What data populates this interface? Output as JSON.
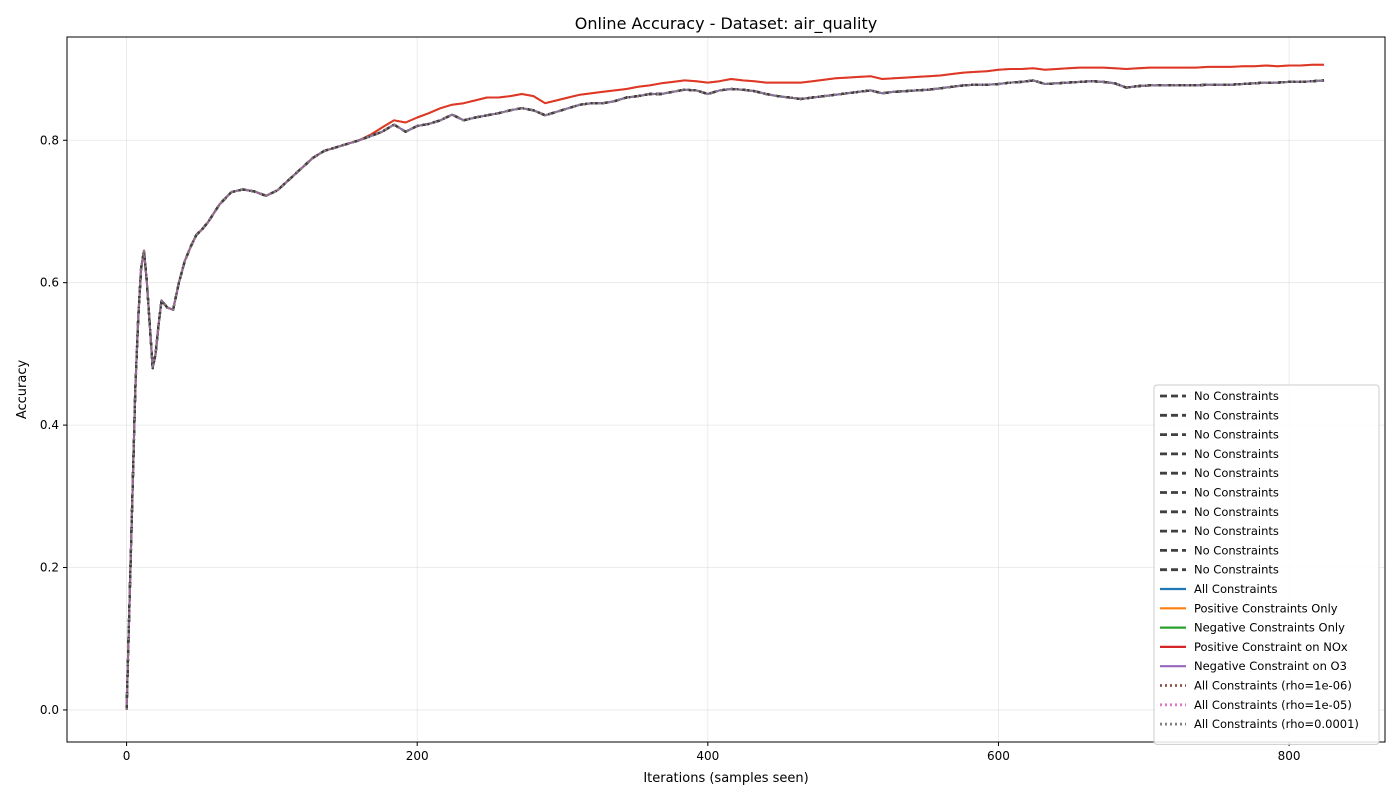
{
  "chart_data": {
    "type": "line",
    "title": "Online Accuracy - Dataset: air_quality",
    "xlabel": "Iterations (samples seen)",
    "ylabel": "Accuracy",
    "xlim": [
      -41,
      866
    ],
    "ylim": [
      -0.045,
      0.945
    ],
    "xticks": [
      0,
      200,
      400,
      600,
      800
    ],
    "xtick_labels": [
      "0",
      "200",
      "400",
      "600",
      "800"
    ],
    "yticks": [
      0.0,
      0.2,
      0.4,
      0.6,
      0.8
    ],
    "ytick_labels": [
      "0.0",
      "0.2",
      "0.4",
      "0.6",
      "0.8"
    ],
    "grid": true,
    "legend_position": "lower-right",
    "curves": {
      "baseline": {
        "x": [
          0,
          2,
          4,
          6,
          8,
          10,
          12,
          14,
          16,
          18,
          20,
          22,
          24,
          26,
          28,
          32,
          36,
          40,
          44,
          48,
          52,
          56,
          64,
          72,
          80,
          88,
          96,
          104,
          112,
          120,
          128,
          136,
          144,
          152,
          160,
          168,
          176,
          184,
          192,
          200,
          208,
          216,
          224,
          232,
          240,
          248,
          256,
          264,
          272,
          280,
          288,
          296,
          304,
          312,
          320,
          328,
          336,
          344,
          352,
          360,
          368,
          376,
          384,
          392,
          400,
          408,
          416,
          424,
          432,
          440,
          448,
          456,
          464,
          472,
          480,
          488,
          496,
          504,
          512,
          520,
          528,
          536,
          544,
          552,
          560,
          568,
          576,
          584,
          592,
          600,
          608,
          616,
          624,
          632,
          640,
          648,
          656,
          664,
          672,
          680,
          688,
          696,
          704,
          712,
          720,
          728,
          736,
          744,
          752,
          760,
          768,
          776,
          784,
          792,
          800,
          808,
          816,
          824
        ],
        "y": [
          0.0,
          0.15,
          0.3,
          0.45,
          0.55,
          0.62,
          0.645,
          0.6,
          0.54,
          0.48,
          0.5,
          0.54,
          0.575,
          0.57,
          0.565,
          0.562,
          0.6,
          0.63,
          0.65,
          0.667,
          0.675,
          0.685,
          0.71,
          0.727,
          0.731,
          0.728,
          0.722,
          0.73,
          0.745,
          0.76,
          0.775,
          0.785,
          0.79,
          0.795,
          0.8,
          0.806,
          0.812,
          0.822,
          0.812,
          0.82,
          0.823,
          0.828,
          0.836,
          0.828,
          0.832,
          0.835,
          0.838,
          0.842,
          0.845,
          0.842,
          0.835,
          0.84,
          0.845,
          0.85,
          0.852,
          0.852,
          0.855,
          0.86,
          0.862,
          0.865,
          0.865,
          0.868,
          0.871,
          0.87,
          0.865,
          0.87,
          0.872,
          0.871,
          0.869,
          0.865,
          0.862,
          0.86,
          0.858,
          0.86,
          0.862,
          0.864,
          0.866,
          0.868,
          0.87,
          0.866,
          0.868,
          0.869,
          0.87,
          0.871,
          0.873,
          0.875,
          0.877,
          0.878,
          0.878,
          0.879,
          0.881,
          0.882,
          0.884,
          0.879,
          0.88,
          0.881,
          0.882,
          0.883,
          0.882,
          0.88,
          0.874,
          0.876,
          0.877,
          0.877,
          0.877,
          0.877,
          0.877,
          0.878,
          0.878,
          0.878,
          0.879,
          0.88,
          0.881,
          0.881,
          0.882,
          0.882,
          0.883,
          0.884
        ]
      },
      "nox": {
        "x": [
          0,
          2,
          4,
          6,
          8,
          10,
          12,
          14,
          16,
          18,
          20,
          22,
          24,
          26,
          28,
          32,
          36,
          40,
          44,
          48,
          52,
          56,
          64,
          72,
          80,
          88,
          96,
          104,
          112,
          120,
          128,
          136,
          144,
          152,
          160,
          168,
          176,
          184,
          192,
          200,
          208,
          216,
          224,
          232,
          240,
          248,
          256,
          264,
          272,
          280,
          288,
          296,
          304,
          312,
          320,
          328,
          336,
          344,
          352,
          360,
          368,
          376,
          384,
          392,
          400,
          408,
          416,
          424,
          432,
          440,
          448,
          456,
          464,
          472,
          480,
          488,
          496,
          504,
          512,
          520,
          528,
          536,
          544,
          552,
          560,
          568,
          576,
          584,
          592,
          600,
          608,
          616,
          624,
          632,
          640,
          648,
          656,
          664,
          672,
          680,
          688,
          696,
          704,
          712,
          720,
          728,
          736,
          744,
          752,
          760,
          768,
          776,
          784,
          792,
          800,
          808,
          816,
          824
        ],
        "y": [
          0.0,
          0.15,
          0.3,
          0.45,
          0.55,
          0.62,
          0.645,
          0.6,
          0.54,
          0.48,
          0.5,
          0.54,
          0.575,
          0.57,
          0.565,
          0.562,
          0.6,
          0.63,
          0.65,
          0.667,
          0.675,
          0.685,
          0.71,
          0.727,
          0.731,
          0.728,
          0.722,
          0.73,
          0.745,
          0.76,
          0.775,
          0.785,
          0.79,
          0.795,
          0.8,
          0.808,
          0.818,
          0.828,
          0.825,
          0.832,
          0.838,
          0.845,
          0.85,
          0.852,
          0.856,
          0.86,
          0.86,
          0.862,
          0.865,
          0.862,
          0.852,
          0.856,
          0.86,
          0.864,
          0.866,
          0.868,
          0.87,
          0.872,
          0.875,
          0.877,
          0.88,
          0.882,
          0.884,
          0.883,
          0.881,
          0.883,
          0.886,
          0.884,
          0.883,
          0.881,
          0.881,
          0.881,
          0.881,
          0.883,
          0.885,
          0.887,
          0.888,
          0.889,
          0.89,
          0.886,
          0.887,
          0.888,
          0.889,
          0.89,
          0.891,
          0.893,
          0.895,
          0.896,
          0.897,
          0.899,
          0.9,
          0.9,
          0.901,
          0.899,
          0.9,
          0.901,
          0.902,
          0.902,
          0.902,
          0.901,
          0.9,
          0.901,
          0.902,
          0.902,
          0.902,
          0.902,
          0.902,
          0.903,
          0.903,
          0.903,
          0.904,
          0.904,
          0.905,
          0.904,
          0.905,
          0.905,
          0.906,
          0.906
        ]
      }
    },
    "series": [
      {
        "name": "No Constraints",
        "curve": "baseline",
        "color": "#404040",
        "style": "dashed"
      },
      {
        "name": "No Constraints",
        "curve": "baseline",
        "color": "#404040",
        "style": "dashed"
      },
      {
        "name": "No Constraints",
        "curve": "baseline",
        "color": "#404040",
        "style": "dashed"
      },
      {
        "name": "No Constraints",
        "curve": "baseline",
        "color": "#404040",
        "style": "dashed"
      },
      {
        "name": "No Constraints",
        "curve": "baseline",
        "color": "#404040",
        "style": "dashed"
      },
      {
        "name": "No Constraints",
        "curve": "baseline",
        "color": "#404040",
        "style": "dashed"
      },
      {
        "name": "No Constraints",
        "curve": "baseline",
        "color": "#404040",
        "style": "dashed"
      },
      {
        "name": "No Constraints",
        "curve": "baseline",
        "color": "#404040",
        "style": "dashed"
      },
      {
        "name": "No Constraints",
        "curve": "baseline",
        "color": "#404040",
        "style": "dashed"
      },
      {
        "name": "No Constraints",
        "curve": "baseline",
        "color": "#404040",
        "style": "dashed"
      },
      {
        "name": "All Constraints",
        "curve": "baseline",
        "color": "#1f77b4",
        "style": "solid"
      },
      {
        "name": "Positive Constraints Only",
        "curve": "nox",
        "color": "#ff7f0e",
        "style": "solid"
      },
      {
        "name": "Negative Constraints Only",
        "curve": "baseline",
        "color": "#2ca02c",
        "style": "solid"
      },
      {
        "name": "Positive Constraint on NOx",
        "curve": "nox",
        "color": "#d62728",
        "style": "solid"
      },
      {
        "name": "Negative Constraint on O3",
        "curve": "baseline",
        "color": "#9467bd",
        "style": "solid"
      },
      {
        "name": "All Constraints (rho=1e-06)",
        "curve": "baseline",
        "color": "#8c564b",
        "style": "dotted"
      },
      {
        "name": "All Constraints (rho=1e-05)",
        "curve": "baseline",
        "color": "#e377c2",
        "style": "dotted"
      },
      {
        "name": "All Constraints (rho=0.0001)",
        "curve": "baseline",
        "color": "#7f7f7f",
        "style": "dotted"
      }
    ]
  }
}
